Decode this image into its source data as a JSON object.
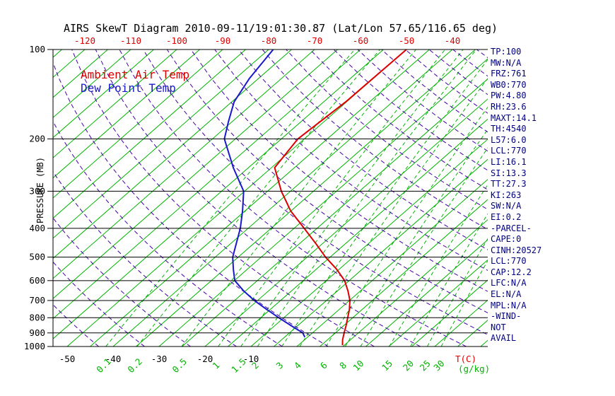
{
  "title": "AIRS SkewT Diagram 2010-09-11/19:01:30.87 (Lat/Lon 57.65/116.65 deg)",
  "legend": {
    "ambient": "Ambient Air Temp",
    "dewpoint": "Dew Point Temp"
  },
  "colors": {
    "green": "#00b400",
    "purple": "#4400aa",
    "red": "#dd0000",
    "blue": "#1818cc",
    "black": "#000000",
    "stats_text": "#000080"
  },
  "axes": {
    "y_label": "PRESSURE (MB)",
    "pressure_ticks": [
      100,
      200,
      300,
      400,
      500,
      600,
      700,
      800,
      900,
      1000
    ],
    "top_temp_labels": [
      -120,
      -110,
      -100,
      -90,
      -80,
      -70,
      -60,
      -50,
      -40
    ],
    "bottom_temp_labels": [
      -50,
      -40,
      -30,
      -20,
      -10
    ],
    "x_unit_label": "T(C)",
    "mr_unit_label": "(g/kg)"
  },
  "chart_data": {
    "type": "skewt-log-p",
    "pressure_range_mb": [
      100,
      1000
    ],
    "temp_axis_c_at_1000mb": [
      -53,
      41
    ],
    "isotherms_c": {
      "min": -130,
      "max": 40,
      "step": 5
    },
    "dry_adiabats_theta_K": {
      "min": 220,
      "max": 470,
      "step": 10
    },
    "mixing_ratios_g_kg": [
      0.1,
      0.2,
      0.5,
      1,
      1.5,
      2,
      3,
      4,
      6,
      8,
      10,
      15,
      20,
      25,
      30
    ],
    "series": [
      {
        "name": "Ambient Air Temp",
        "color": "#dd0000",
        "points_p_t": [
          [
            100,
            -50.0
          ],
          [
            150,
            -50.2
          ],
          [
            200,
            -51.4
          ],
          [
            250,
            -49.3
          ],
          [
            300,
            -42.0
          ],
          [
            350,
            -35.0
          ],
          [
            400,
            -27.8
          ],
          [
            450,
            -21.5
          ],
          [
            500,
            -16.0
          ],
          [
            550,
            -10.5
          ],
          [
            600,
            -6.0
          ],
          [
            650,
            -2.7
          ],
          [
            700,
            0.1
          ],
          [
            750,
            2.2
          ],
          [
            800,
            3.9
          ],
          [
            850,
            5.5
          ],
          [
            900,
            6.9
          ],
          [
            950,
            8.3
          ],
          [
            990,
            9.6
          ]
        ]
      },
      {
        "name": "Dew Point Temp",
        "color": "#1818cc",
        "points_p_t": [
          [
            100,
            -79.0
          ],
          [
            125,
            -77.0
          ],
          [
            150,
            -74.5
          ],
          [
            175,
            -70.8
          ],
          [
            200,
            -67.4
          ],
          [
            250,
            -58.3
          ],
          [
            300,
            -50.2
          ],
          [
            350,
            -45.5
          ],
          [
            400,
            -41.7
          ],
          [
            450,
            -38.8
          ],
          [
            500,
            -36.2
          ],
          [
            550,
            -33.0
          ],
          [
            600,
            -29.9
          ],
          [
            650,
            -25.4
          ],
          [
            700,
            -20.7
          ],
          [
            750,
            -15.8
          ],
          [
            800,
            -11.1
          ],
          [
            850,
            -6.5
          ],
          [
            900,
            -2.1
          ],
          [
            930,
            -0.6
          ]
        ]
      }
    ]
  },
  "side_panel": {
    "items": [
      "TP:100",
      "MW:N/A",
      "FRZ:761",
      "WB0:770",
      "PW:4.80",
      "RH:23.6",
      "MAXT:14.1",
      "TH:4540",
      "L57:6.0",
      "LCL:770",
      "LI:16.1",
      "SI:13.3",
      "TT:27.3",
      "KI:263",
      "SW:N/A",
      "EI:0.2",
      "-PARCEL-",
      "CAPE:0",
      "CINH:20527",
      "LCL:770",
      "CAP:12.2",
      "LFC:N/A",
      "EL:N/A",
      "MPL:N/A",
      "-WIND-",
      "NOT",
      "AVAIL"
    ]
  }
}
